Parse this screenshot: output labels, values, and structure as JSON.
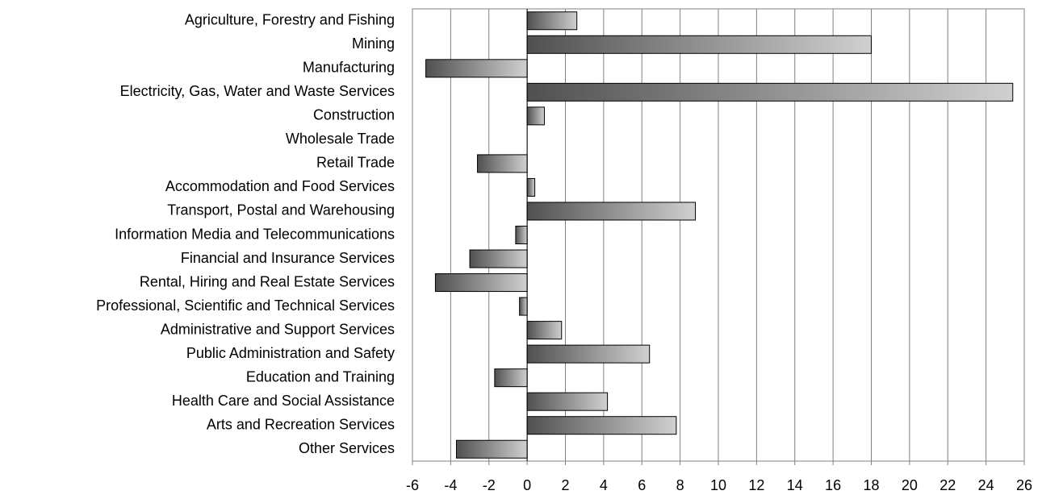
{
  "chart_data": {
    "type": "bar",
    "orientation": "horizontal",
    "categories": [
      "Agriculture, Forestry and Fishing",
      "Mining",
      "Manufacturing",
      "Electricity, Gas, Water and Waste Services",
      "Construction",
      "Wholesale Trade",
      "Retail Trade",
      "Accommodation and Food Services",
      "Transport, Postal and Warehousing",
      "Information Media and Telecommunications",
      "Financial and Insurance Services",
      "Rental, Hiring and Real Estate Services",
      "Professional, Scientific and Technical Services",
      "Administrative and Support Services",
      "Public Administration and Safety",
      "Education and Training",
      "Health Care and Social Assistance",
      "Arts and Recreation Services",
      "Other Services"
    ],
    "values": [
      2.6,
      18.0,
      -5.3,
      25.4,
      0.9,
      0,
      -2.6,
      0.4,
      8.8,
      -0.6,
      -3.0,
      -4.8,
      -0.4,
      1.8,
      6.4,
      -1.7,
      4.2,
      7.8,
      -3.7
    ],
    "color": [
      "#505050",
      "#d0d0d0"
    ],
    "xlim": [
      -6,
      26
    ],
    "xticks": [
      -6,
      -4,
      -2,
      0,
      2,
      4,
      6,
      8,
      10,
      12,
      14,
      16,
      18,
      20,
      22,
      24,
      26
    ],
    "grid": true
  }
}
